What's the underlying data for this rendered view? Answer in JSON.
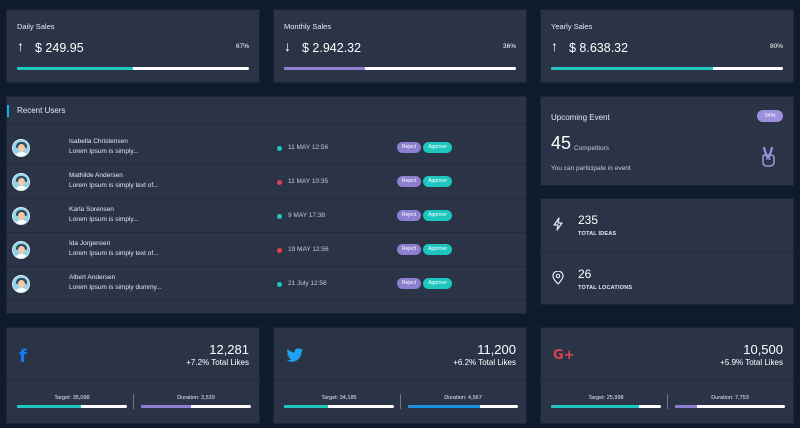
{
  "sales": [
    {
      "title": "Daily Sales",
      "arrow": "↑",
      "amount": "$ 249.95",
      "percent": "67%",
      "progress": 0.5,
      "color": "#1ec6c0"
    },
    {
      "title": "Monthly Sales",
      "arrow": "↓",
      "amount": "$ 2.942.32",
      "percent": "36%",
      "progress": 0.35,
      "color": "#8c7fd0"
    },
    {
      "title": "Yearly Sales",
      "arrow": "↑",
      "amount": "$ 8.638.32",
      "percent": "80%",
      "progress": 0.7,
      "color": "#1ec6c0"
    }
  ],
  "recent_users": {
    "title": "Recent Users",
    "reject_label": "Reject",
    "approve_label": "Approve",
    "rows": [
      {
        "name": "Isabella Christensen",
        "desc": "Lorem Ipsum is simply...",
        "date": "11 MAY 12:56",
        "status_color": "#1ec6c0"
      },
      {
        "name": "Mathilde Andersen",
        "desc": "Lorem Ipsum is simply text of...",
        "date": "11 MAY 10:35",
        "status_color": "#e0434b"
      },
      {
        "name": "Karla Sorensen",
        "desc": "Lorem Ipsum is simply...",
        "date": "9 MAY 17:38",
        "status_color": "#1ec6c0"
      },
      {
        "name": "Ida Jorgensen",
        "desc": "Lorem Ipsum is simply text of...",
        "date": "19 MAY 12:56",
        "status_color": "#e0434b"
      },
      {
        "name": "Albert Andersen",
        "desc": "Lorem Ipsum is simply dummy...",
        "date": "21 July 12:56",
        "status_color": "#1ec6c0"
      }
    ]
  },
  "event": {
    "title": "Upcoming Event",
    "badge": "34%",
    "count": "45",
    "count_label": "Competitors",
    "subtitle": "You can participate in event",
    "icon": "victory-hand-icon",
    "accent": "#9d90dd"
  },
  "stats": [
    {
      "icon": "lightning-icon",
      "value": "235",
      "label": "TOTAL IDEAS"
    },
    {
      "icon": "location-pin-icon",
      "value": "26",
      "label": "TOTAL LOCATIONS"
    }
  ],
  "social": [
    {
      "network": "facebook",
      "logo": "f",
      "logo_color": "#1877f2",
      "likes": "12,281",
      "likes_label": "+7.2% Total Likes",
      "target_label": "Target: 35,098",
      "target_progress": 0.58,
      "target_color": "#1ec6c0",
      "duration_label": "Duration: 3,539",
      "duration_progress": 0.45,
      "duration_color": "#8c7fd0"
    },
    {
      "network": "twitter",
      "logo": "twitter-bird",
      "logo_color": "#1da1f2",
      "likes": "11,200",
      "likes_label": "+6.2% Total Likes",
      "target_label": "Target: 34,185",
      "target_progress": 0.4,
      "target_color": "#1ec6c0",
      "duration_label": "Duration: 4,567",
      "duration_progress": 0.65,
      "duration_color": "#1a8fe0"
    },
    {
      "network": "google-plus",
      "logo": "G+",
      "logo_color": "#e0434b",
      "likes": "10,500",
      "likes_label": "+5.9% Total Likes",
      "target_label": "Target: 25,998",
      "target_progress": 0.8,
      "target_color": "#1ec6c0",
      "duration_label": "Duration: 7,753",
      "duration_progress": 0.2,
      "duration_color": "#8c7fd0"
    }
  ]
}
